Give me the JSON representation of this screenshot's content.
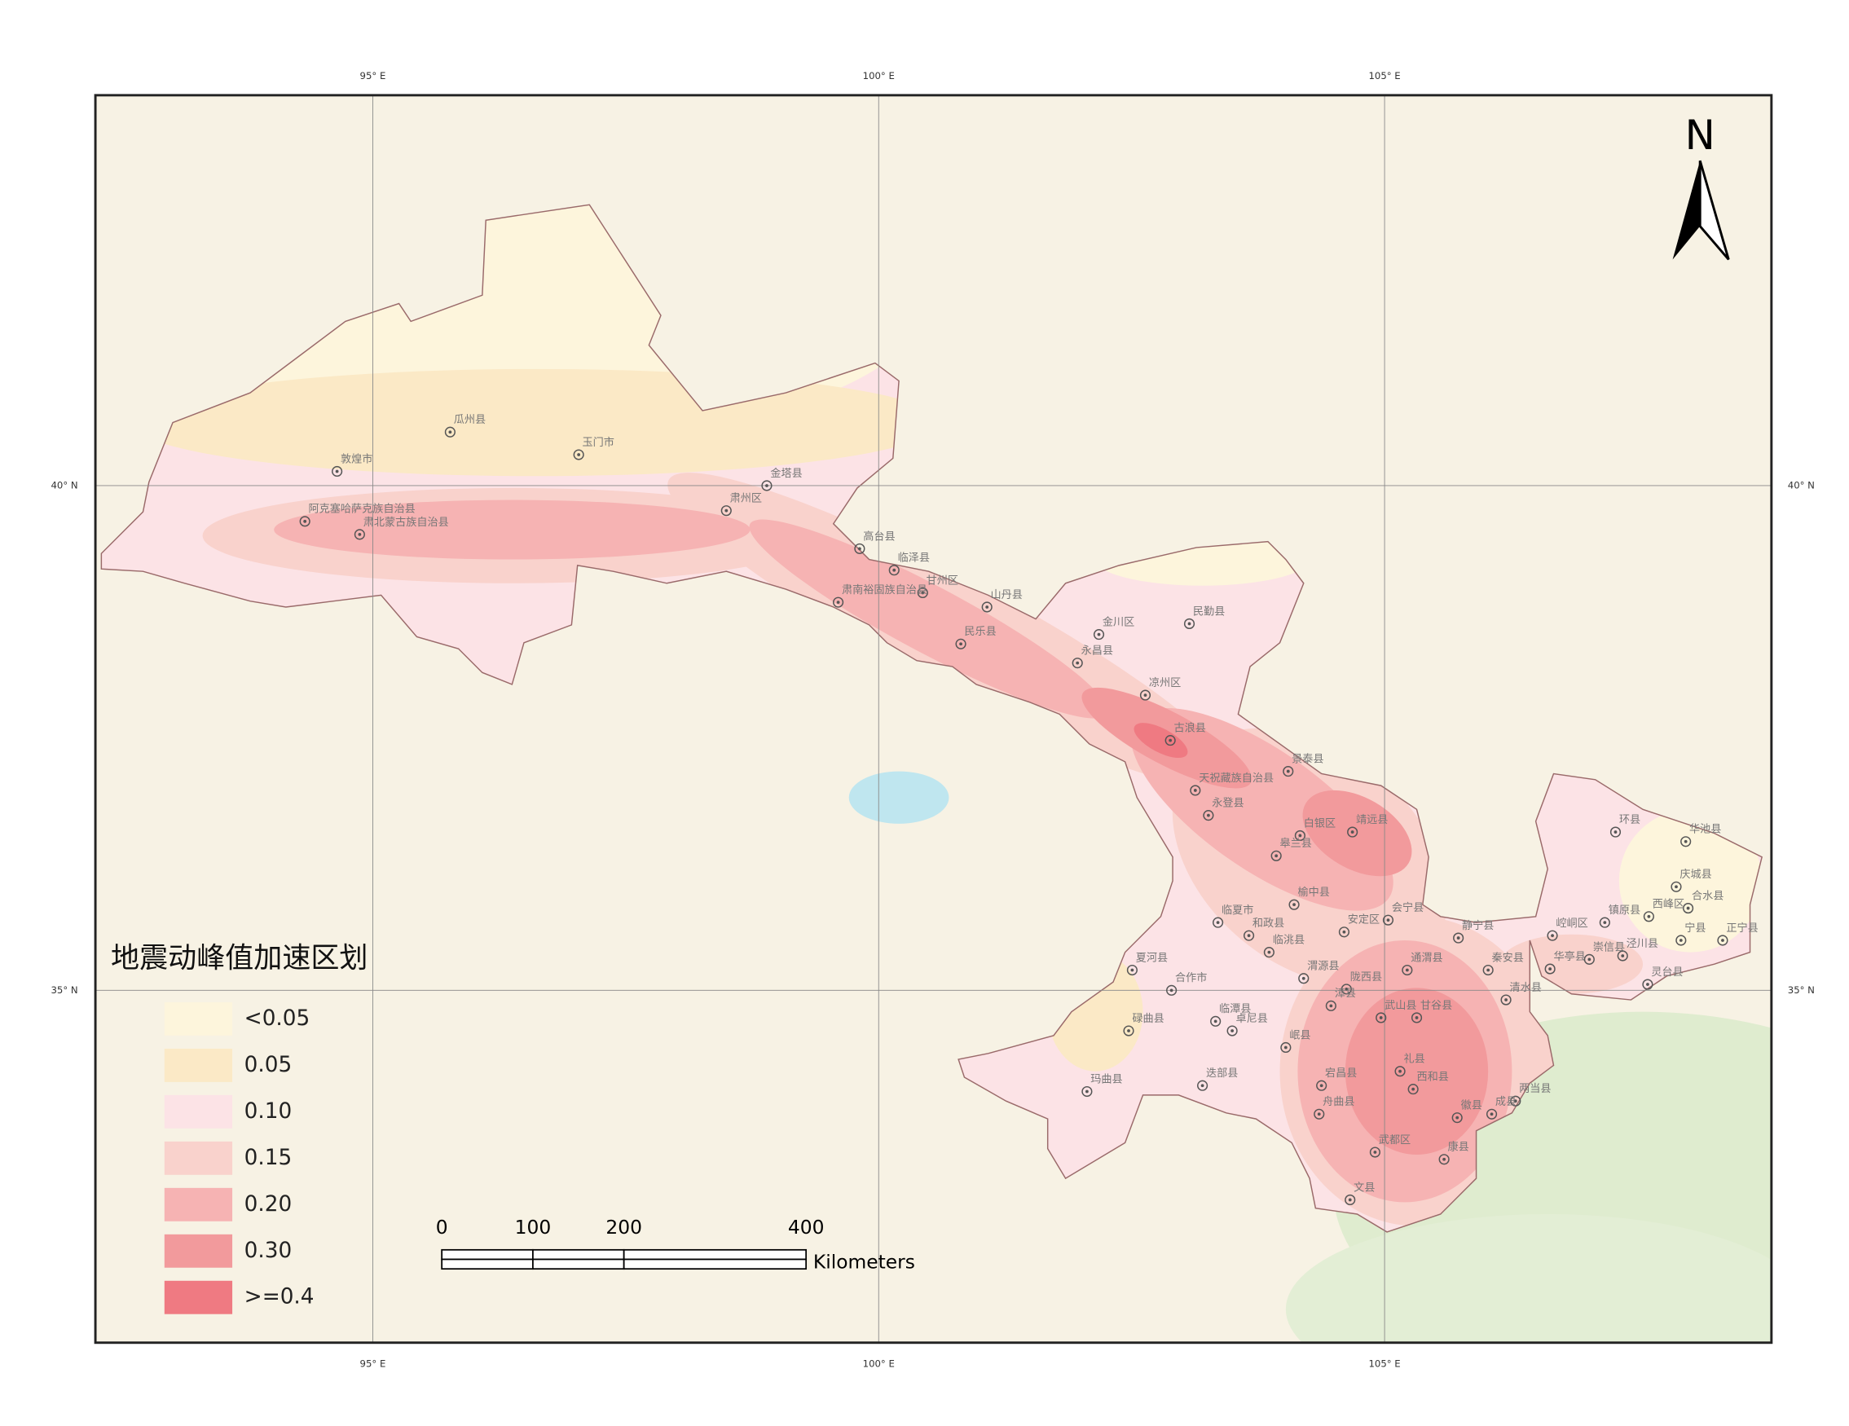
{
  "map": {
    "title": "地震动峰值加速区划",
    "north": "N",
    "longitudes": [
      {
        "value": 95,
        "label": "95° E"
      },
      {
        "value": 100,
        "label": "100° E"
      },
      {
        "value": 105,
        "label": "105° E"
      }
    ],
    "latitudes": [
      {
        "value": 40,
        "label": "40° N"
      },
      {
        "value": 35,
        "label": "35° N"
      }
    ],
    "legend": [
      {
        "label": "<0.05",
        "color": "#fdf5dc"
      },
      {
        "label": "0.05",
        "color": "#fbe9c6"
      },
      {
        "label": "0.10",
        "color": "#fce3e6"
      },
      {
        "label": "0.15",
        "color": "#f9d2cc"
      },
      {
        "label": "0.20",
        "color": "#f6b3b3"
      },
      {
        "label": "0.30",
        "color": "#f29a9c"
      },
      {
        "label": ">=0.4",
        "color": "#ef7a82"
      }
    ],
    "scale_bar": {
      "ticks": [
        0,
        100,
        200,
        400
      ],
      "unit": "Kilometers"
    },
    "places": [
      "瓜州县",
      "敦煌市",
      "玉门市",
      "阿克塞哈萨克族自治县",
      "肃北蒙古族自治县",
      "金塔县",
      "肃州区",
      "高台县",
      "临泽县",
      "甘州区",
      "肃南裕固族自治县",
      "山丹县",
      "民乐县",
      "金川区",
      "民勤县",
      "永昌县",
      "凉州区",
      "古浪县",
      "景泰县",
      "天祝藏族自治县",
      "永登县",
      "白银区",
      "靖远县",
      "皋兰县",
      "榆中县",
      "会宁县",
      "静宁县",
      "安定区",
      "临洮县",
      "渭源县",
      "陇西县",
      "通渭县",
      "秦安县",
      "环县",
      "华池县",
      "庆城县",
      "合水县",
      "西峰区",
      "宁县",
      "正宁县",
      "镇原县",
      "崆峒区",
      "泾川县",
      "华亭县",
      "灵台县",
      "崇信县",
      "甘谷县",
      "清水县",
      "夏河县",
      "合作市",
      "临夏市",
      "碌曲县",
      "玛曲县",
      "卓尼县",
      "临潭县",
      "岷县",
      "迭部县",
      "宕昌县",
      "舟曲县",
      "礼县",
      "西和县",
      "武山县",
      "徽县",
      "两当县",
      "成县",
      "武都区",
      "康县",
      "文县",
      "漳县",
      "和政县"
    ]
  }
}
